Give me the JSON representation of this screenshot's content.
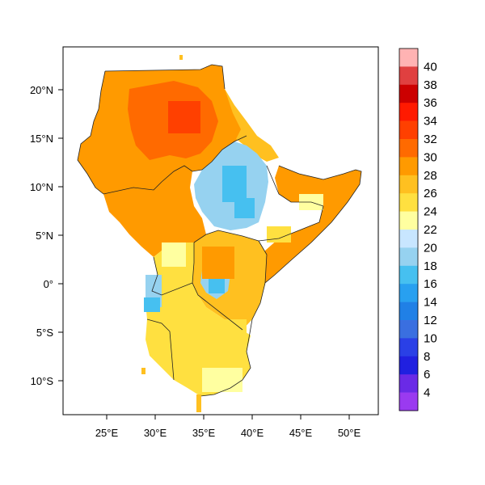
{
  "map": {
    "lon_ticks": [
      "25°E",
      "30°E",
      "35°E",
      "40°E",
      "45°E",
      "50°E"
    ],
    "lat_ticks": [
      "20°N",
      "15°N",
      "10°N",
      "5°N",
      "0°",
      "5°S",
      "10°S"
    ]
  },
  "colorbar": {
    "labels": [
      "40",
      "38",
      "36",
      "34",
      "32",
      "30",
      "28",
      "26",
      "24",
      "22",
      "20",
      "18",
      "16",
      "14",
      "12",
      "10",
      "8",
      "6",
      "4"
    ],
    "colors": [
      "#ffb3b3",
      "#e04040",
      "#cc0000",
      "#ff1a00",
      "#ff4000",
      "#ff6a00",
      "#ff9a00",
      "#ffc020",
      "#ffe040",
      "#ffffa0",
      "#c8e6ff",
      "#96d2f0",
      "#46c0f0",
      "#28a0f0",
      "#2080e6",
      "#3a6fe0",
      "#2a40e6",
      "#2020e0",
      "#6a2ae6",
      "#9a3af0"
    ]
  },
  "regions": [
    {
      "name": "north-sudan-region",
      "color": "#ff9a00"
    },
    {
      "name": "central-hot-core-region",
      "color": "#ff6a00"
    },
    {
      "name": "red-sea-coast-region",
      "color": "#ffc020"
    },
    {
      "name": "horn-region",
      "color": "#ff9a00"
    },
    {
      "name": "south-sudan-region",
      "color": "#ff9a00"
    },
    {
      "name": "ethiopian-highlands-region",
      "color": "#96d2f0"
    },
    {
      "name": "kenya-region",
      "color": "#ffc020"
    },
    {
      "name": "southern-region",
      "color": "#ffe040"
    },
    {
      "name": "lake-victoria-region",
      "color": "#96d2f0"
    }
  ]
}
